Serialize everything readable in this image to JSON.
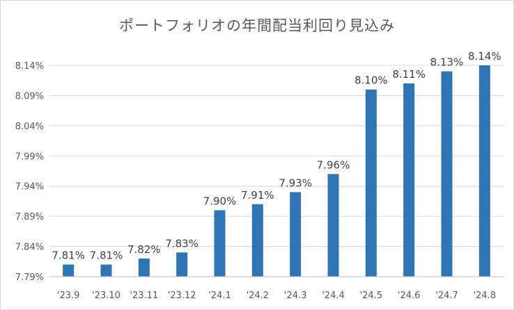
{
  "chart_data": {
    "type": "bar",
    "title": "ポートフォリオの年間配当利回り見込み",
    "xlabel": "",
    "ylabel": "",
    "categories": [
      "'23.9",
      "'23.10",
      "'23.11",
      "'23.12",
      "'24.1",
      "'24.2",
      "'24.3",
      "'24.4",
      "'24.5",
      "'24.6",
      "'24.7",
      "'24.8"
    ],
    "values": [
      7.81,
      7.81,
      7.82,
      7.83,
      7.9,
      7.91,
      7.93,
      7.96,
      8.1,
      8.11,
      8.13,
      8.14
    ],
    "data_labels": [
      "7.81%",
      "7.81%",
      "7.82%",
      "7.83%",
      "7.90%",
      "7.91%",
      "7.93%",
      "7.96%",
      "8.10%",
      "8.11%",
      "8.13%",
      "8.14%"
    ],
    "ylim": [
      7.79,
      8.14
    ],
    "yticks": [
      7.79,
      7.84,
      7.89,
      7.94,
      7.99,
      8.04,
      8.09,
      8.14
    ],
    "ytick_labels": [
      "7.79%",
      "7.84%",
      "7.89%",
      "7.94%",
      "7.99%",
      "8.04%",
      "8.09%",
      "8.14%"
    ],
    "grid": true,
    "legend": "none",
    "bar_color": "#2E75B6",
    "grid_color": "#d9d9d9"
  }
}
